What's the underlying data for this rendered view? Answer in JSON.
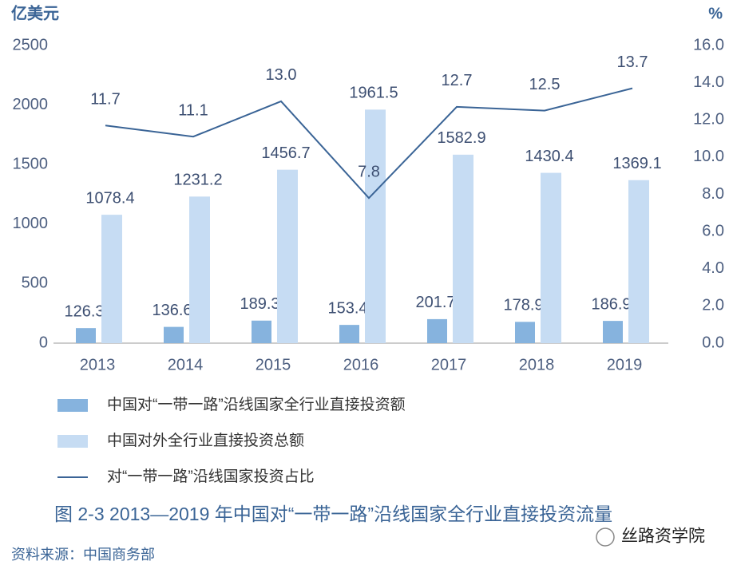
{
  "chart_data": {
    "type": "bar",
    "title": "图 2-3 2013—2019 年中国对“一带一路”沿线国家全行业直接投资流量",
    "y_label": "亿美元",
    "y2_label": "%",
    "source": "资料来源：中国商务部",
    "watermark": "丝路资学院",
    "categories": [
      "2013",
      "2014",
      "2015",
      "2016",
      "2017",
      "2018",
      "2019"
    ],
    "ylim": [
      0,
      2500
    ],
    "yticks": [
      0,
      500,
      1000,
      1500,
      2000,
      2500
    ],
    "y2lim": [
      0,
      16
    ],
    "y2ticks": [
      {
        "value": 0,
        "label": "0.0"
      },
      {
        "value": 2,
        "label": "2.0"
      },
      {
        "value": 4,
        "label": "4.0"
      },
      {
        "value": 6,
        "label": "6.0"
      },
      {
        "value": 8,
        "label": "8.0"
      },
      {
        "value": 10,
        "label": "10.0"
      },
      {
        "value": 12,
        "label": "12.0"
      },
      {
        "value": 14,
        "label": "14.0"
      },
      {
        "value": 16,
        "label": "16.0"
      }
    ],
    "series": [
      {
        "name": "中国对“一带一路”沿线国家全行业直接投资额",
        "type": "bar",
        "color": "#86b3de",
        "values": [
          126.3,
          136.6,
          189.3,
          153.4,
          201.7,
          178.9,
          186.9
        ]
      },
      {
        "name": "中国对外全行业直接投资总额",
        "type": "bar",
        "color": "#c6dcf3",
        "values": [
          1078.4,
          1231.2,
          1456.7,
          1961.5,
          1582.9,
          1430.4,
          1369.1
        ]
      },
      {
        "name": "对“一带一路”沿线国家投资占比",
        "type": "line",
        "axis": "y2",
        "color": "#3a6496",
        "values": [
          11.7,
          11.1,
          13.0,
          7.8,
          12.7,
          12.5,
          13.7
        ],
        "value_labels": [
          "11.7",
          "11.1",
          "13.0",
          "7.8",
          "12.7",
          "12.5",
          "13.7"
        ]
      }
    ]
  }
}
